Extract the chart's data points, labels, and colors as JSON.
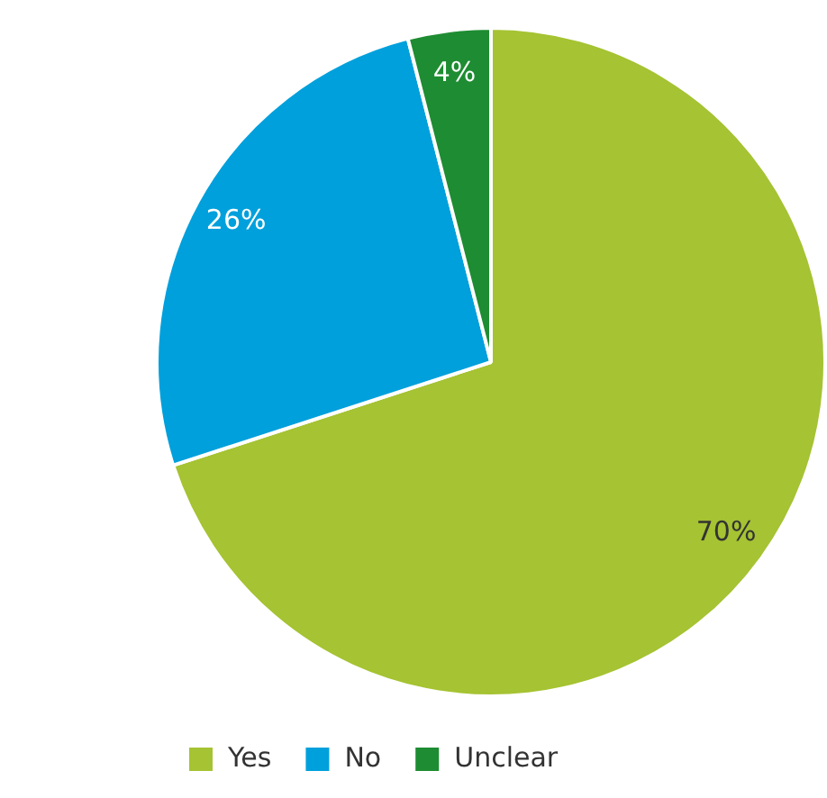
{
  "chart_data": {
    "type": "pie",
    "categories": [
      "Yes",
      "No",
      "Unclear"
    ],
    "values": [
      70,
      26,
      4
    ],
    "colors": [
      "#a5c332",
      "#00a0dc",
      "#1e8c32"
    ],
    "value_labels": [
      "70%",
      "26%",
      "4%"
    ],
    "legend": "bottom left"
  }
}
